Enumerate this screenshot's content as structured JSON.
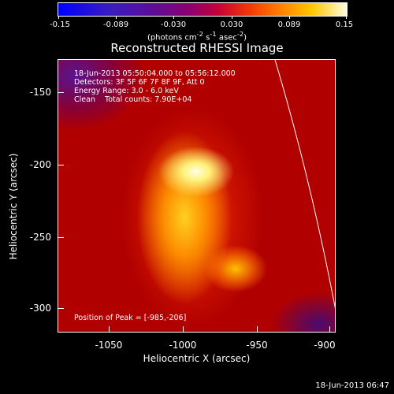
{
  "colorbar": {
    "ticks": [
      "-0.15",
      "-0.089",
      "-0.030",
      "0.030",
      "0.089",
      "0.15"
    ],
    "units_prefix": "(photons cm",
    "units_exp1": "-2",
    "units_mid1": " s",
    "units_exp2": "-1",
    "units_mid2": " asec",
    "units_exp3": "-2",
    "units_suffix": ")"
  },
  "title": "Reconstructed RHESSI Image",
  "info": {
    "time_range": "18-Jun-2013 05:50:04.000 to 05:56:12.000",
    "detectors": "Detectors: 3F 5F 6F 7F 8F 9F, Att 0",
    "energy": "Energy Range: 3.0 - 6.0 keV",
    "clean": "Clean    Total counts: 7.90E+04",
    "peak": "Position of Peak = [-985,-206]"
  },
  "axes": {
    "xlabel": "Heliocentric X (arcsec)",
    "ylabel": "Heliocentric Y (arcsec)",
    "xticks": [
      "-1050",
      "-1000",
      "-950",
      "-900"
    ],
    "yticks": [
      "-150",
      "-200",
      "-250",
      "-300"
    ]
  },
  "footer_date": "18-Jun-2013 06:47"
}
